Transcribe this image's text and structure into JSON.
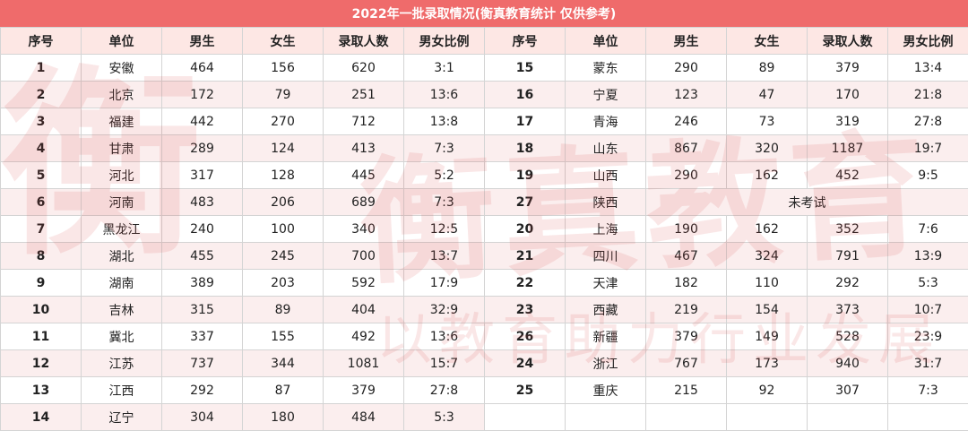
{
  "title": "2022年一批录取情况(衡真教育统计 仅供参考)",
  "columns": [
    "序号",
    "单位",
    "男生",
    "女生",
    "录取人数",
    "男女比例"
  ],
  "left_rows": [
    {
      "seq": "1",
      "unit": "安徽",
      "male": "464",
      "female": "156",
      "admitted": "620",
      "ratio": "3:1"
    },
    {
      "seq": "2",
      "unit": "北京",
      "male": "172",
      "female": "79",
      "admitted": "251",
      "ratio": "13:6"
    },
    {
      "seq": "3",
      "unit": "福建",
      "male": "442",
      "female": "270",
      "admitted": "712",
      "ratio": "13:8"
    },
    {
      "seq": "4",
      "unit": "甘肃",
      "male": "289",
      "female": "124",
      "admitted": "413",
      "ratio": "7:3"
    },
    {
      "seq": "5",
      "unit": "河北",
      "male": "317",
      "female": "128",
      "admitted": "445",
      "ratio": "5:2"
    },
    {
      "seq": "6",
      "unit": "河南",
      "male": "483",
      "female": "206",
      "admitted": "689",
      "ratio": "7:3"
    },
    {
      "seq": "7",
      "unit": "黑龙江",
      "male": "240",
      "female": "100",
      "admitted": "340",
      "ratio": "12:5"
    },
    {
      "seq": "8",
      "unit": "湖北",
      "male": "455",
      "female": "245",
      "admitted": "700",
      "ratio": "13:7"
    },
    {
      "seq": "9",
      "unit": "湖南",
      "male": "389",
      "female": "203",
      "admitted": "592",
      "ratio": "17:9"
    },
    {
      "seq": "10",
      "unit": "吉林",
      "male": "315",
      "female": "89",
      "admitted": "404",
      "ratio": "32:9"
    },
    {
      "seq": "11",
      "unit": "冀北",
      "male": "337",
      "female": "155",
      "admitted": "492",
      "ratio": "13:6"
    },
    {
      "seq": "12",
      "unit": "江苏",
      "male": "737",
      "female": "344",
      "admitted": "1081",
      "ratio": "15:7"
    },
    {
      "seq": "13",
      "unit": "江西",
      "male": "292",
      "female": "87",
      "admitted": "379",
      "ratio": "27:8"
    },
    {
      "seq": "14",
      "unit": "辽宁",
      "male": "304",
      "female": "180",
      "admitted": "484",
      "ratio": "5:3"
    }
  ],
  "right_rows": [
    {
      "seq": "15",
      "unit": "蒙东",
      "male": "290",
      "female": "89",
      "admitted": "379",
      "ratio": "13:4"
    },
    {
      "seq": "16",
      "unit": "宁夏",
      "male": "123",
      "female": "47",
      "admitted": "170",
      "ratio": "21:8"
    },
    {
      "seq": "17",
      "unit": "青海",
      "male": "246",
      "female": "73",
      "admitted": "319",
      "ratio": "27:8"
    },
    {
      "seq": "18",
      "unit": "山东",
      "male": "867",
      "female": "320",
      "admitted": "1187",
      "ratio": "19:7"
    },
    {
      "seq": "19",
      "unit": "山西",
      "male": "290",
      "female": "162",
      "admitted": "452",
      "ratio": "9:5"
    },
    {
      "seq": "27",
      "unit": "陕西",
      "note": "未考试"
    },
    {
      "seq": "20",
      "unit": "上海",
      "male": "190",
      "female": "162",
      "admitted": "352",
      "ratio": "7:6"
    },
    {
      "seq": "21",
      "unit": "四川",
      "male": "467",
      "female": "324",
      "admitted": "791",
      "ratio": "13:9"
    },
    {
      "seq": "22",
      "unit": "天津",
      "male": "182",
      "female": "110",
      "admitted": "292",
      "ratio": "5:3"
    },
    {
      "seq": "23",
      "unit": "西藏",
      "male": "219",
      "female": "154",
      "admitted": "373",
      "ratio": "10:7"
    },
    {
      "seq": "26",
      "unit": "新疆",
      "male": "379",
      "female": "149",
      "admitted": "528",
      "ratio": "23:9"
    },
    {
      "seq": "24",
      "unit": "浙江",
      "male": "767",
      "female": "173",
      "admitted": "940",
      "ratio": "31:7"
    },
    {
      "seq": "25",
      "unit": "重庆",
      "male": "215",
      "female": "92",
      "admitted": "307",
      "ratio": "7:3"
    }
  ],
  "watermark": {
    "logo_text": "衡",
    "brand_text": "衡真教育",
    "slogan_text": "以教育助力行业发展",
    "color": "#dc4646"
  },
  "colors": {
    "title_bar": "#ef6b6b",
    "header_row": "#fde7e4",
    "stripe_row": "#fbeeee"
  }
}
